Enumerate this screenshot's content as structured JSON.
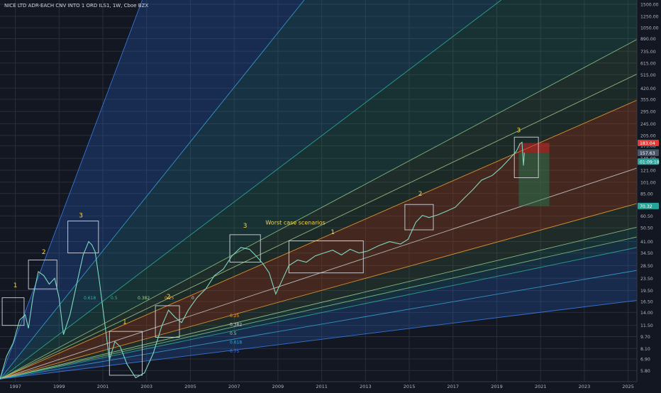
{
  "header": {
    "symbol_title": "NICE LTD ADR-EACH CNV INTO 1 ORD ILS1, 1W, Cboe BZX"
  },
  "chart_data": {
    "type": "line",
    "title": "NICE LTD ADR-EACH CNV INTO 1 ORD ILS1, 1W, Cboe BZX",
    "xlabel": "",
    "ylabel": "",
    "y_scale": "log",
    "x_range": [
      1996.3,
      2025.4
    ],
    "y_range": [
      4.9,
      1600
    ],
    "grid": true,
    "x_ticks": [
      "1997",
      "1999",
      "2001",
      "2003",
      "2005",
      "2007",
      "2009",
      "2011",
      "2013",
      "2015",
      "2017",
      "2019",
      "2021",
      "2023",
      "2025"
    ],
    "y_ticks": [
      "5.80",
      "6.90",
      "8.10",
      "9.70",
      "11.50",
      "14.00",
      "16.50",
      "19.50",
      "23.50",
      "28.50",
      "34.50",
      "41.00",
      "50.50",
      "60.50",
      "70.32",
      "85.00",
      "101.00",
      "121.00",
      "145.00",
      "175.00",
      "205.00",
      "245.00",
      "295.00",
      "355.00",
      "420.00",
      "515.00",
      "615.00",
      "735.00",
      "890.00",
      "1050.00",
      "1250.00",
      "1500.00"
    ],
    "series": [
      {
        "points": [
          [
            1996.3,
            5.1
          ],
          [
            1996.6,
            7.2
          ],
          [
            1996.9,
            8.8
          ],
          [
            1997.2,
            12.5
          ],
          [
            1997.45,
            13.5
          ],
          [
            1997.6,
            11.0
          ],
          [
            1997.8,
            17.5
          ],
          [
            1998.05,
            26.0
          ],
          [
            1998.3,
            24.5
          ],
          [
            1998.55,
            21.5
          ],
          [
            1998.8,
            23.5
          ],
          [
            1999.0,
            17.5
          ],
          [
            1999.2,
            10.0
          ],
          [
            1999.5,
            13.5
          ],
          [
            1999.85,
            23.0
          ],
          [
            2000.1,
            33.5
          ],
          [
            2000.35,
            41.0
          ],
          [
            2000.5,
            39.0
          ],
          [
            2000.65,
            35.0
          ],
          [
            2000.85,
            22.0
          ],
          [
            2001.1,
            11.5
          ],
          [
            2001.3,
            6.8
          ],
          [
            2001.55,
            9.0
          ],
          [
            2001.8,
            8.3
          ],
          [
            2002.1,
            6.4
          ],
          [
            2002.5,
            5.2
          ],
          [
            2002.9,
            5.6
          ],
          [
            2003.3,
            7.5
          ],
          [
            2003.7,
            11.5
          ],
          [
            2004.0,
            14.5
          ],
          [
            2004.3,
            13.0
          ],
          [
            2004.6,
            12.0
          ],
          [
            2004.9,
            14.5
          ],
          [
            2005.3,
            17.5
          ],
          [
            2005.7,
            20.0
          ],
          [
            2006.1,
            24.5
          ],
          [
            2006.5,
            27.0
          ],
          [
            2006.9,
            33.0
          ],
          [
            2007.3,
            37.5
          ],
          [
            2007.7,
            36.5
          ],
          [
            2008.0,
            33.0
          ],
          [
            2008.3,
            29.5
          ],
          [
            2008.6,
            25.5
          ],
          [
            2008.9,
            18.5
          ],
          [
            2009.2,
            23.0
          ],
          [
            2009.5,
            28.5
          ],
          [
            2009.9,
            31.0
          ],
          [
            2010.3,
            30.0
          ],
          [
            2010.7,
            33.0
          ],
          [
            2011.1,
            34.5
          ],
          [
            2011.5,
            36.0
          ],
          [
            2011.9,
            33.5
          ],
          [
            2012.3,
            36.5
          ],
          [
            2012.7,
            34.5
          ],
          [
            2013.1,
            35.5
          ],
          [
            2013.6,
            38.5
          ],
          [
            2014.1,
            41.0
          ],
          [
            2014.6,
            39.5
          ],
          [
            2014.95,
            42.5
          ],
          [
            2015.3,
            55.0
          ],
          [
            2015.6,
            61.0
          ],
          [
            2015.9,
            59.0
          ],
          [
            2016.3,
            61.5
          ],
          [
            2016.7,
            65.0
          ],
          [
            2017.1,
            69.0
          ],
          [
            2017.5,
            79.0
          ],
          [
            2017.9,
            90.0
          ],
          [
            2018.3,
            104.0
          ],
          [
            2018.8,
            112.0
          ],
          [
            2019.2,
            126.0
          ],
          [
            2019.6,
            145.0
          ],
          [
            2019.9,
            162.0
          ],
          [
            2020.05,
            180.0
          ],
          [
            2020.15,
            185.0
          ],
          [
            2020.22,
            130.0
          ],
          [
            2020.26,
            158.0
          ]
        ]
      }
    ],
    "fan": {
      "origin": [
        1996.3,
        5.1
      ],
      "lines": [
        {
          "target": [
            2002.8,
            1600
          ],
          "color": "#3d82f0"
        },
        {
          "target": [
            2010.2,
            1600
          ],
          "color": "#3aa8d6"
        },
        {
          "target": [
            2019.2,
            1600
          ],
          "color": "#2fb59b"
        },
        {
          "target": [
            2025.4,
            880
          ],
          "color": "#8fc98b"
        },
        {
          "target": [
            2025.4,
            520
          ],
          "color": "#a5cf8f"
        },
        {
          "target": [
            2025.4,
            350
          ],
          "color": "#f7a133"
        },
        {
          "target": [
            2025.4,
            125
          ],
          "color": "#cfd3d8"
        },
        {
          "target": [
            2025.4,
            73
          ],
          "color": "#f7a133"
        },
        {
          "target": [
            2025.4,
            51
          ],
          "color": "#a5cf8f"
        },
        {
          "target": [
            2025.4,
            44
          ],
          "color": "#8fc98b"
        },
        {
          "target": [
            2025.4,
            37.5
          ],
          "color": "#2fb59b"
        },
        {
          "target": [
            2025.4,
            26.5
          ],
          "color": "#3aa8d6"
        },
        {
          "target": [
            2025.4,
            16.8
          ],
          "color": "#3d82f0"
        }
      ],
      "labels_top": [
        "0.618",
        "0.5",
        "0.382",
        "0.25",
        "0"
      ],
      "labels_bottom": [
        "0.25",
        "0.382",
        "0.5",
        "0.618",
        "0.75"
      ]
    },
    "annotations": [
      {
        "text": "1",
        "x": 1997.0,
        "y": 20.5,
        "color": "#f5d547"
      },
      {
        "text": "2",
        "x": 1998.3,
        "y": 34.0,
        "color": "#f5d547"
      },
      {
        "text": "3",
        "x": 2000.0,
        "y": 59.0,
        "color": "#f5d547"
      },
      {
        "text": "1",
        "x": 2002.0,
        "y": 11.8,
        "color": "#f5d547"
      },
      {
        "text": "2",
        "x": 2004.0,
        "y": 17.3,
        "color": "#f5d547"
      },
      {
        "text": "3",
        "x": 2007.5,
        "y": 50.5,
        "color": "#f5d547"
      },
      {
        "text": "1",
        "x": 2011.5,
        "y": 46.0,
        "color": "#f5d547"
      },
      {
        "text": "2",
        "x": 2015.5,
        "y": 82.0,
        "color": "#f5d547"
      },
      {
        "text": "3",
        "x": 2020.0,
        "y": 215.0,
        "color": "#f5d547"
      },
      {
        "text": "Worst case scenarios",
        "x": 2009.8,
        "y": 53.0,
        "color": "#f5d547"
      }
    ],
    "wave_boxes": [
      {
        "x0": 1996.4,
        "x1": 1997.4,
        "y0": 11.5,
        "y1": 17.5
      },
      {
        "x0": 1997.6,
        "x1": 1998.9,
        "y0": 20.0,
        "y1": 31.0
      },
      {
        "x0": 1999.4,
        "x1": 2000.8,
        "y0": 34.5,
        "y1": 56.0
      },
      {
        "x0": 2001.3,
        "x1": 2002.8,
        "y0": 5.4,
        "y1": 10.5
      },
      {
        "x0": 2003.4,
        "x1": 2004.5,
        "y0": 9.6,
        "y1": 15.5
      },
      {
        "x0": 2006.8,
        "x1": 2008.2,
        "y0": 30.0,
        "y1": 45.5
      },
      {
        "x0": 2009.5,
        "x1": 2012.9,
        "y0": 25.5,
        "y1": 41.5
      },
      {
        "x0": 2014.8,
        "x1": 2016.1,
        "y0": 49.0,
        "y1": 72.0
      },
      {
        "x0": 2019.8,
        "x1": 2020.9,
        "y0": 108.0,
        "y1": 200.0
      }
    ],
    "position_tool": {
      "x0": 2020.0,
      "x1": 2021.4,
      "entry": 157.63,
      "stop": 183.04,
      "target": 70.32,
      "stop_color": "#c62828",
      "target_color": "#1b8a5a"
    },
    "price_labels": [
      {
        "text": "183.04",
        "value": 183.04,
        "color": "#e53935"
      },
      {
        "text": "157.94",
        "value": 157.94,
        "color": "#26a69a"
      },
      {
        "text": "157.63",
        "value": 157.63,
        "color": "#4a5568"
      },
      {
        "text": "01:09:18",
        "value": 138.0,
        "color": "#26a69a"
      },
      {
        "text": "70.32",
        "value": 70.32,
        "color": "#26a69a"
      }
    ]
  }
}
